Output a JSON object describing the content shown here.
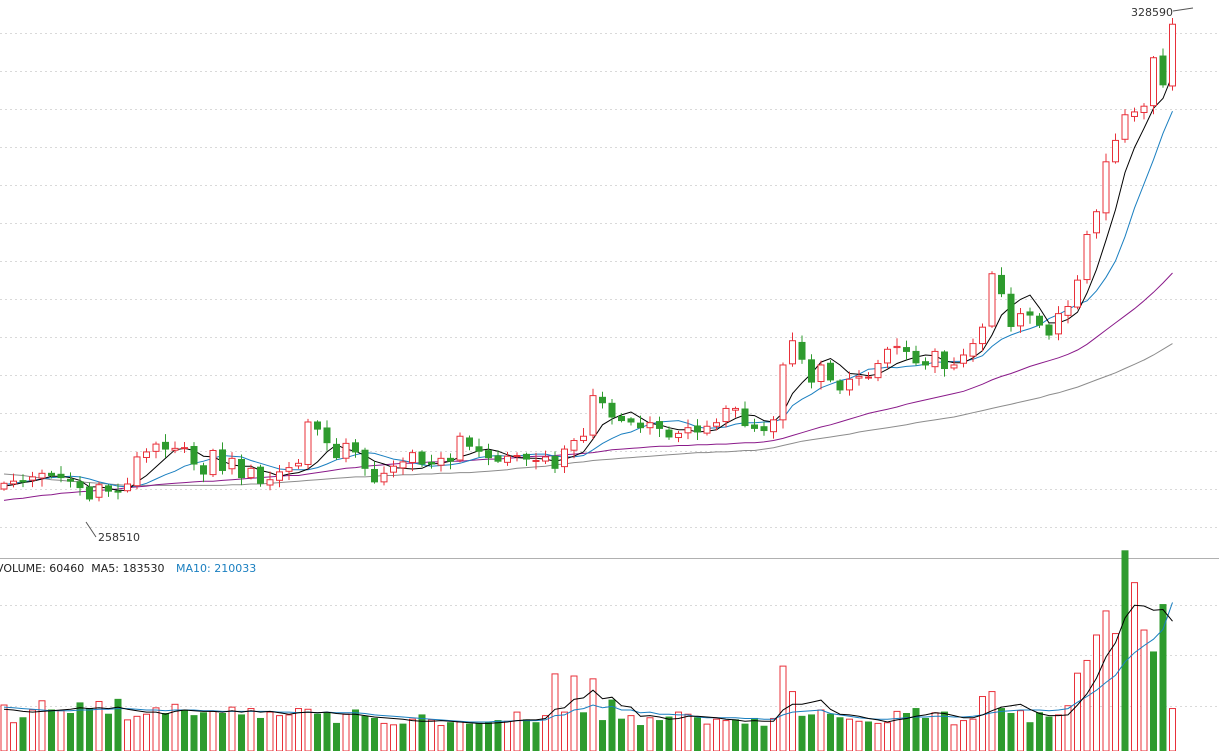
{
  "colors": {
    "up": "#e8303a",
    "down": "#2e9b2e",
    "ma_black": "#000000",
    "ma_blue": "#1a7fc0",
    "ma_purple": "#8a1a8a",
    "ma_gray": "#8c8c8c",
    "grid": "#d9d9d9",
    "separator": "#b0b0b0",
    "text": "#333333"
  },
  "chart_data": [
    {
      "type": "candlestick",
      "annotations": {
        "high_label": "328590",
        "low_label": "258510"
      },
      "ylim": [
        253000,
        331000
      ],
      "grid": true,
      "close": [
        263200,
        263500,
        263400,
        264100,
        264600,
        264300,
        264000,
        263500,
        262600,
        261000,
        263000,
        262100,
        262000,
        263100,
        266900,
        267600,
        268700,
        268000,
        268100,
        268200,
        265900,
        264500,
        267800,
        265000,
        266700,
        264000,
        265300,
        263200,
        263700,
        264800,
        265400,
        266000,
        271800,
        270800,
        268900,
        266800,
        268800,
        267600,
        265300,
        263400,
        264600,
        265600,
        266200,
        267500,
        265900,
        265900,
        266700,
        266300,
        269800,
        268400,
        267700,
        266800,
        266300,
        267000,
        267100,
        266600,
        266400,
        266900,
        265300,
        268000,
        269200,
        269800,
        275500,
        274500,
        272500,
        272000,
        271800,
        271000,
        271700,
        270900,
        269700,
        270200,
        271000,
        270400,
        271200,
        271700,
        273700,
        273700,
        271300,
        270900,
        270600,
        272100,
        279800,
        283200,
        280600,
        277400,
        279800,
        277700,
        276300,
        277800,
        278200,
        278100,
        280000,
        282000,
        282400,
        281700,
        280100,
        279800,
        281700,
        279300,
        279800,
        281200,
        282800,
        285100,
        292600,
        289800,
        285200,
        287000,
        286800,
        285400,
        284000,
        287000,
        288000,
        291700,
        298100,
        301300,
        308300,
        311300,
        314900,
        315300,
        316100,
        322900,
        319100,
        327600
      ],
      "ma5": [
        262800,
        263000,
        263300,
        263500,
        263800,
        264200,
        264200,
        264000,
        263600,
        262700,
        262700,
        262500,
        262200,
        262200,
        263400,
        264300,
        265500,
        266700,
        267900,
        268100,
        267800,
        267000,
        266900,
        266300,
        265800,
        265600,
        265600,
        265000,
        264700,
        264200,
        264500,
        264700,
        265200,
        266200,
        267600,
        268600,
        268000,
        267700,
        267100,
        266300,
        265900,
        265400,
        265300,
        265200,
        265300,
        265900,
        266000,
        266300,
        266900,
        267300,
        267800,
        268000,
        267700,
        267200,
        266800,
        266700,
        266700,
        266600,
        266300,
        266600,
        267000,
        267600,
        269400,
        271400,
        272200,
        272800,
        273200,
        272400,
        271600,
        271400,
        271000,
        270700,
        270700,
        270400,
        270500,
        270700,
        271600,
        272300,
        272800,
        272700,
        272000,
        271800,
        273100,
        275800,
        277300,
        278600,
        280200,
        280700,
        279800,
        278600,
        278500,
        278300,
        278500,
        279200,
        280000,
        280500,
        280900,
        281200,
        281100,
        280400,
        280100,
        280100,
        280800,
        281800,
        284000,
        286800,
        288000,
        289000,
        289600,
        287800,
        285700,
        285700,
        286200,
        287200,
        289900,
        293200,
        297300,
        301600,
        306800,
        310300,
        313000,
        315800,
        317200,
        320500
      ],
      "ma10": [
        263000,
        263200,
        263400,
        263600,
        263800,
        264000,
        264100,
        264200,
        264100,
        263800,
        263400,
        263100,
        262800,
        262700,
        262800,
        263200,
        263800,
        264400,
        264900,
        265600,
        266000,
        266300,
        266700,
        267100,
        267000,
        266900,
        266400,
        266000,
        265600,
        265200,
        265100,
        265100,
        265100,
        265400,
        265900,
        266500,
        266800,
        267200,
        267500,
        267400,
        267000,
        266600,
        266400,
        266100,
        265800,
        265600,
        265700,
        265800,
        266000,
        266400,
        266800,
        267000,
        267100,
        267000,
        267000,
        267200,
        267300,
        267300,
        267000,
        266900,
        266900,
        267100,
        267900,
        268800,
        269500,
        270100,
        270400,
        271000,
        271500,
        271800,
        271900,
        272000,
        271600,
        271100,
        270900,
        271000,
        271100,
        271500,
        271700,
        271700,
        271800,
        271800,
        272300,
        274100,
        275000,
        275700,
        276600,
        277100,
        277600,
        277900,
        278500,
        279200,
        279300,
        279500,
        279400,
        279600,
        279700,
        279900,
        280200,
        280200,
        280300,
        280300,
        280600,
        281100,
        282400,
        283400,
        284000,
        284500,
        284900,
        285400,
        286300,
        286900,
        287600,
        288300,
        288800,
        290200,
        292100,
        294400,
        297800,
        301800,
        305200,
        308600,
        312300,
        315400
      ],
      "ma30": [
        260800,
        261000,
        261100,
        261300,
        261500,
        261600,
        261800,
        261900,
        262000,
        262100,
        262200,
        262300,
        262400,
        262600,
        262700,
        262800,
        263000,
        263100,
        263200,
        263300,
        263400,
        263500,
        263500,
        263600,
        263700,
        263800,
        263900,
        264000,
        264100,
        264200,
        264300,
        264300,
        264500,
        264700,
        264900,
        265100,
        265300,
        265400,
        265600,
        265700,
        265800,
        265900,
        266000,
        266000,
        266100,
        266200,
        266200,
        266300,
        266300,
        266400,
        266500,
        266600,
        266600,
        266700,
        266800,
        266900,
        267000,
        267000,
        267100,
        267200,
        267300,
        267400,
        267500,
        267700,
        267900,
        268000,
        268100,
        268200,
        268300,
        268400,
        268400,
        268500,
        268500,
        268600,
        268600,
        268700,
        268700,
        268800,
        268900,
        268900,
        269000,
        269200,
        269500,
        269900,
        270300,
        270700,
        271100,
        271400,
        271800,
        272200,
        272600,
        273000,
        273300,
        273600,
        273900,
        274300,
        274600,
        274900,
        275200,
        275500,
        275800,
        276100,
        276600,
        277100,
        277700,
        278200,
        278600,
        279100,
        279600,
        280000,
        280400,
        280800,
        281300,
        281900,
        282700,
        283700,
        284700,
        285700,
        286700,
        287700,
        288800,
        290000,
        291300,
        292700
      ],
      "ma60": [
        264500,
        264400,
        264300,
        264100,
        263900,
        263700,
        263600,
        263500,
        263400,
        263300,
        263200,
        263100,
        263000,
        262900,
        262900,
        262900,
        262900,
        262900,
        262900,
        262900,
        262900,
        262900,
        262900,
        262900,
        263000,
        263000,
        263100,
        263100,
        263200,
        263300,
        263400,
        263500,
        263600,
        263700,
        263800,
        263900,
        264000,
        264100,
        264100,
        264200,
        264300,
        264300,
        264400,
        264400,
        264500,
        264500,
        264600,
        264600,
        264700,
        264700,
        264800,
        264900,
        265000,
        265100,
        265300,
        265400,
        265500,
        265600,
        265800,
        265900,
        266100,
        266200,
        266400,
        266500,
        266600,
        266700,
        266800,
        266900,
        267000,
        267100,
        267200,
        267300,
        267400,
        267500,
        267500,
        267600,
        267600,
        267700,
        267800,
        267800,
        268000,
        268200,
        268500,
        268800,
        269100,
        269300,
        269500,
        269700,
        269900,
        270100,
        270400,
        270600,
        270800,
        271000,
        271200,
        271400,
        271700,
        271900,
        272100,
        272300,
        272500,
        272800,
        273100,
        273400,
        273700,
        274000,
        274300,
        274600,
        274900,
        275200,
        275600,
        275900,
        276300,
        276700,
        277200,
        277700,
        278200,
        278700,
        279300,
        279900,
        280500,
        281200,
        282000,
        282800
      ]
    },
    {
      "type": "bar",
      "title": "VOLUME: 60460  MA5: 183530",
      "ma10_label": "MA10: 210033",
      "ylim": [
        0,
        270000
      ],
      "values": [
        65000,
        40000,
        47000,
        58000,
        71000,
        58000,
        57000,
        53000,
        68000,
        60000,
        70000,
        52000,
        73000,
        44000,
        49000,
        52000,
        61000,
        53000,
        66000,
        58000,
        50000,
        54000,
        56000,
        53000,
        62000,
        51000,
        60000,
        46000,
        55000,
        50000,
        51000,
        60000,
        59000,
        52000,
        54000,
        39000,
        52000,
        58000,
        49000,
        46000,
        39000,
        37000,
        38000,
        45000,
        51000,
        44000,
        36000,
        40000,
        41000,
        38000,
        39000,
        40000,
        43000,
        42000,
        55000,
        44000,
        40000,
        50000,
        109000,
        55000,
        106000,
        54000,
        102000,
        43000,
        72000,
        45000,
        50000,
        36000,
        47000,
        43000,
        48000,
        55000,
        52000,
        47000,
        38000,
        45000,
        43000,
        44000,
        38000,
        46000,
        35000,
        46000,
        120000,
        84000,
        49000,
        51000,
        58000,
        52000,
        47000,
        45000,
        42000,
        41000,
        39000,
        40000,
        56000,
        53000,
        60000,
        46000,
        54000,
        55000,
        37000,
        43000,
        45000,
        77000,
        84000,
        60000,
        53000,
        57000,
        40000,
        54000,
        48000,
        51000,
        64000,
        110000,
        128000,
        164000,
        198000,
        166000,
        283000,
        238000,
        171000,
        140000,
        207000,
        60000
      ],
      "direction": [
        "u",
        "u",
        "d",
        "u",
        "u",
        "d",
        "u",
        "d",
        "d",
        "d",
        "u",
        "d",
        "d",
        "u",
        "u",
        "u",
        "u",
        "d",
        "u",
        "d",
        "d",
        "d",
        "u",
        "d",
        "u",
        "d",
        "u",
        "d",
        "u",
        "u",
        "u",
        "u",
        "u",
        "d",
        "d",
        "d",
        "u",
        "d",
        "d",
        "d",
        "u",
        "u",
        "d",
        "u",
        "d",
        "u",
        "u",
        "d",
        "u",
        "d",
        "d",
        "d",
        "d",
        "u",
        "u",
        "d",
        "d",
        "u",
        "u",
        "u",
        "u",
        "d",
        "u",
        "d",
        "d",
        "d",
        "u",
        "d",
        "u",
        "d",
        "d",
        "u",
        "u",
        "d",
        "u",
        "u",
        "u",
        "d",
        "d",
        "d",
        "d",
        "u",
        "u",
        "u",
        "d",
        "d",
        "u",
        "d",
        "d",
        "u",
        "u",
        "d",
        "u",
        "u",
        "u",
        "d",
        "d",
        "d",
        "u",
        "d",
        "u",
        "u",
        "u",
        "u",
        "u",
        "d",
        "d",
        "u",
        "d",
        "d",
        "d",
        "u",
        "u",
        "u",
        "u",
        "u",
        "u",
        "u",
        "d",
        "u",
        "u",
        "d",
        "d",
        "u"
      ],
      "ma5": [
        59000,
        58000,
        56000,
        55000,
        56000,
        57000,
        58000,
        59000,
        61000,
        60000,
        61000,
        60000,
        62000,
        59000,
        57000,
        55000,
        55000,
        52000,
        56000,
        58000,
        57000,
        56000,
        56000,
        55000,
        57000,
        55000,
        57000,
        55000,
        56000,
        54000,
        52000,
        54000,
        55000,
        54000,
        55000,
        53000,
        52000,
        52000,
        50000,
        48000,
        47000,
        46000,
        45000,
        43000,
        42000,
        42000,
        43000,
        42000,
        41000,
        40000,
        39000,
        39000,
        40000,
        41000,
        43000,
        44000,
        44000,
        46000,
        59000,
        61000,
        73000,
        75000,
        86000,
        74000,
        76000,
        64000,
        62000,
        49000,
        50000,
        48000,
        45000,
        46000,
        49000,
        49000,
        48000,
        47000,
        45000,
        44000,
        42000,
        43000,
        42000,
        42000,
        58000,
        66000,
        66000,
        69000,
        72000,
        59000,
        52000,
        51000,
        49000,
        46000,
        44000,
        41000,
        44000,
        46000,
        49000,
        51000,
        54000,
        53000,
        50000,
        47000,
        47000,
        51000,
        57000,
        62000,
        64000,
        66000,
        59000,
        53000,
        50000,
        50000,
        51000,
        65000,
        81000,
        103000,
        133000,
        153000,
        188000,
        206000,
        205000,
        199000,
        200000,
        183530
      ],
      "ma10": [
        62000,
        61000,
        60000,
        59000,
        58000,
        57000,
        57000,
        57000,
        58000,
        58000,
        59000,
        59000,
        60000,
        60000,
        59000,
        58000,
        58000,
        57000,
        58000,
        58000,
        58000,
        57000,
        57000,
        56000,
        56000,
        56000,
        56000,
        56000,
        56000,
        55000,
        55000,
        54000,
        55000,
        54000,
        55000,
        54000,
        54000,
        54000,
        53000,
        51000,
        50000,
        49000,
        48000,
        47000,
        46000,
        45000,
        44000,
        43000,
        42000,
        41000,
        41000,
        41000,
        42000,
        42000,
        43000,
        43000,
        43000,
        44000,
        50000,
        51000,
        58000,
        60000,
        65000,
        61000,
        63000,
        58000,
        58000,
        54000,
        55000,
        52000,
        52000,
        51000,
        51000,
        48000,
        47000,
        47000,
        47000,
        47000,
        46000,
        46000,
        45000,
        45000,
        51000,
        55000,
        56000,
        57000,
        58000,
        53000,
        51000,
        49000,
        47000,
        46000,
        45000,
        45000,
        46000,
        47000,
        48000,
        48000,
        49000,
        49000,
        48000,
        48000,
        49000,
        51000,
        54000,
        56000,
        57000,
        58000,
        58000,
        58000,
        57000,
        58000,
        60000,
        69000,
        77000,
        86000,
        97000,
        107000,
        126000,
        139000,
        149000,
        158000,
        172000,
        210033
      ]
    }
  ]
}
